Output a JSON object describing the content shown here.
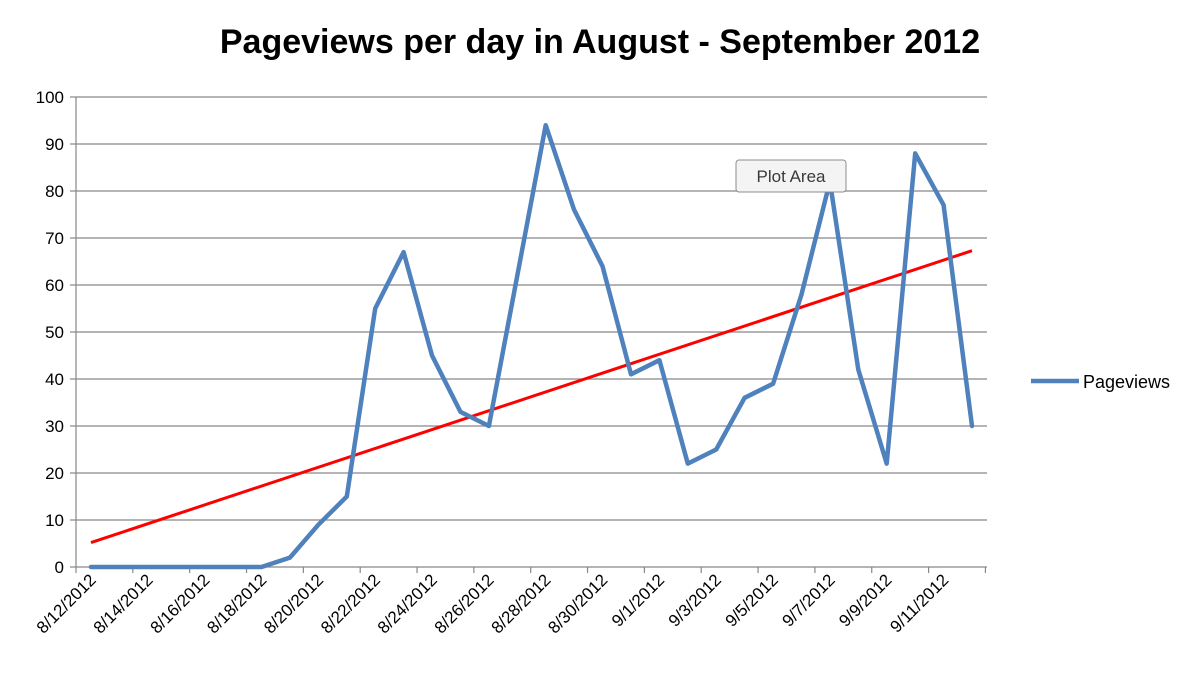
{
  "chart_data": {
    "type": "line",
    "title": "Pageviews per day in August - September 2012",
    "xlabel": "",
    "ylabel": "",
    "ylim": [
      0,
      100
    ],
    "y_ticks": [
      "0",
      "10",
      "20",
      "30",
      "40",
      "50",
      "60",
      "70",
      "80",
      "90",
      "100"
    ],
    "x_tick_labels": [
      "8/12/2012",
      "8/14/2012",
      "8/16/2012",
      "8/18/2012",
      "8/20/2012",
      "8/22/2012",
      "8/24/2012",
      "8/26/2012",
      "8/28/2012",
      "8/30/2012",
      "9/1/2012",
      "9/3/2012",
      "9/5/2012",
      "9/7/2012",
      "9/9/2012",
      "9/11/2012"
    ],
    "x": [
      "8/12/2012",
      "8/13/2012",
      "8/14/2012",
      "8/15/2012",
      "8/16/2012",
      "8/17/2012",
      "8/18/2012",
      "8/19/2012",
      "8/20/2012",
      "8/21/2012",
      "8/22/2012",
      "8/23/2012",
      "8/24/2012",
      "8/25/2012",
      "8/26/2012",
      "8/27/2012",
      "8/28/2012",
      "8/29/2012",
      "8/30/2012",
      "8/31/2012",
      "9/1/2012",
      "9/2/2012",
      "9/3/2012",
      "9/4/2012",
      "9/5/2012",
      "9/6/2012",
      "9/7/2012",
      "9/8/2012",
      "9/9/2012",
      "9/10/2012",
      "9/11/2012",
      "9/12/2012"
    ],
    "series": [
      {
        "name": "Pageviews",
        "color": "#4f81bd",
        "values": [
          0,
          0,
          0,
          0,
          0,
          0,
          0,
          2,
          9,
          15,
          55,
          67,
          45,
          33,
          30,
          62,
          94,
          76,
          64,
          41,
          44,
          22,
          25,
          36,
          39,
          58,
          82,
          42,
          22,
          88,
          77,
          30
        ]
      }
    ],
    "trendline": {
      "color": "#ff0000",
      "start": 5.2,
      "end": 67.3
    },
    "grid": true,
    "legend_position": "right",
    "annotations": [
      {
        "text": "Plot Area"
      }
    ]
  }
}
